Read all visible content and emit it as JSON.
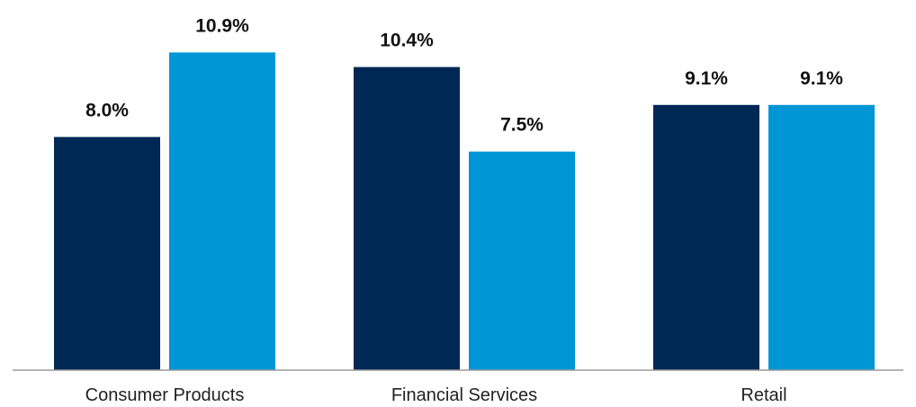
{
  "chart_data": {
    "type": "bar",
    "categories": [
      "Consumer Products",
      "Financial Services",
      "Retail"
    ],
    "series": [
      {
        "values": [
          8.0,
          10.4,
          9.1
        ],
        "value_labels": [
          "8.0%",
          "10.4%",
          "9.1%"
        ],
        "color": "#002855"
      },
      {
        "values": [
          10.9,
          7.5,
          9.1
        ],
        "value_labels": [
          "10.9%",
          "7.5%",
          "9.1%"
        ],
        "color": "#0096D6"
      }
    ],
    "ylim": [
      0,
      12.7
    ],
    "grid": false,
    "axis_color": "#9a9a9a"
  }
}
